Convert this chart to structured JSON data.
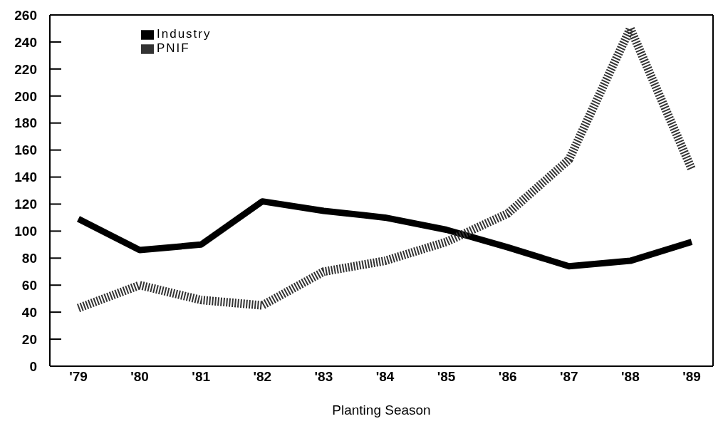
{
  "chart_data": {
    "type": "line",
    "xlabel": "Planting Season",
    "categories": [
      "'79",
      "'80",
      "'81",
      "'82",
      "'83",
      "'84",
      "'85",
      "'86",
      "'87",
      "'88",
      "'89"
    ],
    "series": [
      {
        "name": "Industry",
        "color": "#000000",
        "line_style": "solid",
        "values": [
          109,
          86,
          90,
          122,
          115,
          110,
          101,
          88,
          74,
          78,
          92
        ]
      },
      {
        "name": "PNIF",
        "color": "#333333",
        "line_style": "dashed",
        "values": [
          43,
          60,
          49,
          45,
          70,
          78,
          92,
          113,
          153,
          250,
          146
        ]
      }
    ],
    "ylim": [
      0,
      260
    ],
    "yticks": [
      0,
      20,
      40,
      60,
      80,
      100,
      120,
      140,
      160,
      180,
      200,
      220,
      240,
      260
    ],
    "grid": false,
    "legend": "top left",
    "marker": "none"
  }
}
